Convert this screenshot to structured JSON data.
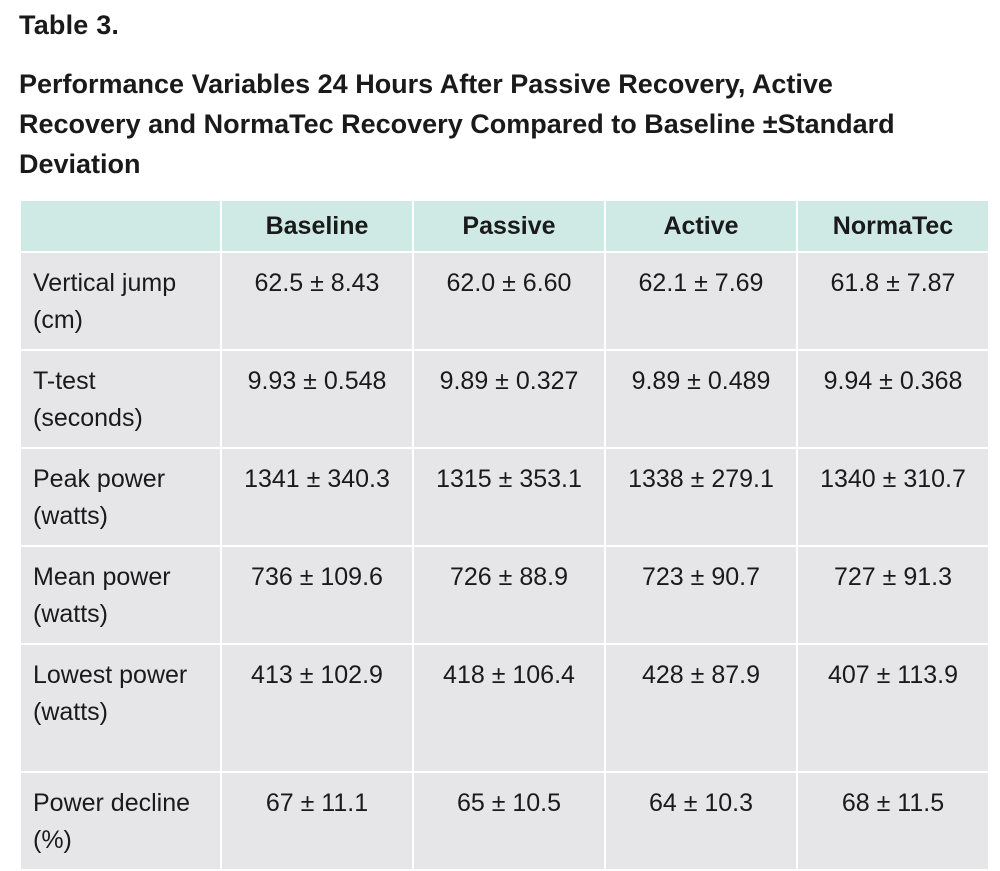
{
  "table_label": "Table 3.",
  "title": "Performance Variables 24 Hours After Passive Recovery, Active Recovery and NormaTec Recovery Compared to Baseline ±Standard Deviation",
  "columns": [
    "",
    "Baseline",
    "Passive",
    "Active",
    "NormaTec"
  ],
  "rows": [
    {
      "label": "Vertical jump (cm)",
      "values": [
        "62.5 ± 8.43",
        "62.0 ± 6.60",
        "62.1 ± 7.69",
        "61.8 ± 7.87"
      ]
    },
    {
      "label": "T-test (seconds)",
      "values": [
        "9.93 ± 0.548",
        "9.89 ± 0.327",
        "9.89 ± 0.489",
        "9.94 ± 0.368"
      ]
    },
    {
      "label": "Peak power (watts)",
      "values": [
        "1341 ± 340.3",
        "1315 ± 353.1",
        "1338 ± 279.1",
        "1340 ± 310.7"
      ]
    },
    {
      "label": "Mean power (watts)",
      "values": [
        "736 ± 109.6",
        "726 ± 88.9",
        "723 ± 90.7",
        "727 ± 91.3"
      ]
    },
    {
      "label": "Lowest power (watts)",
      "values": [
        "413 ± 102.9",
        "418 ± 106.4",
        "428 ± 87.9",
        "407 ± 113.9"
      ]
    },
    {
      "label": "Power decline (%)",
      "values": [
        "67 ± 11.1",
        "65 ± 10.5",
        "64 ± 10.3",
        "68 ± 11.5"
      ]
    }
  ],
  "colors": {
    "header_bg": "#cfeae4",
    "cell_bg": "#e6e6e8",
    "text": "#1a1a1a"
  }
}
